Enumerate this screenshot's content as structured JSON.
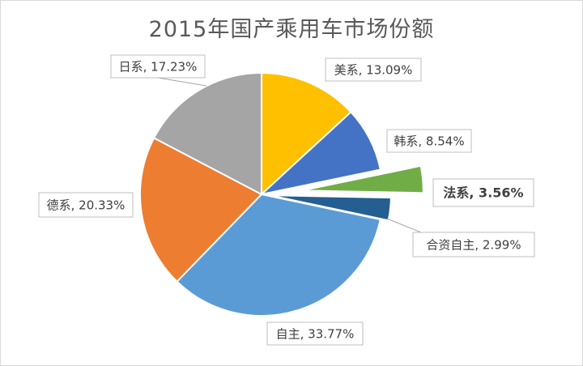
{
  "chart_data": {
    "type": "pie",
    "title": "2015年国产乘用车市场份额",
    "slices": [
      {
        "name": "美系",
        "value": 13.09,
        "label": "美系, 13.09%",
        "color": "#FFC000"
      },
      {
        "name": "韩系",
        "value": 8.54,
        "label": "韩系, 8.54%",
        "color": "#4472C4"
      },
      {
        "name": "法系",
        "value": 3.56,
        "label": "法系, 3.56%",
        "color": "#70AD47",
        "emphasized": true,
        "exploded": true
      },
      {
        "name": "合资自主",
        "value": 2.99,
        "label": "合资自主, 2.99%",
        "color": "#255E91",
        "exploded": true
      },
      {
        "name": "自主",
        "value": 33.77,
        "label": "自主, 33.77%",
        "color": "#5B9BD5"
      },
      {
        "name": "德系",
        "value": 20.33,
        "label": "德系, 20.33%",
        "color": "#ED7D31"
      },
      {
        "name": "日系",
        "value": 17.23,
        "label": "日系, 17.23%",
        "color": "#A5A5A5"
      }
    ],
    "legend": "none",
    "label_style": "callouts"
  }
}
